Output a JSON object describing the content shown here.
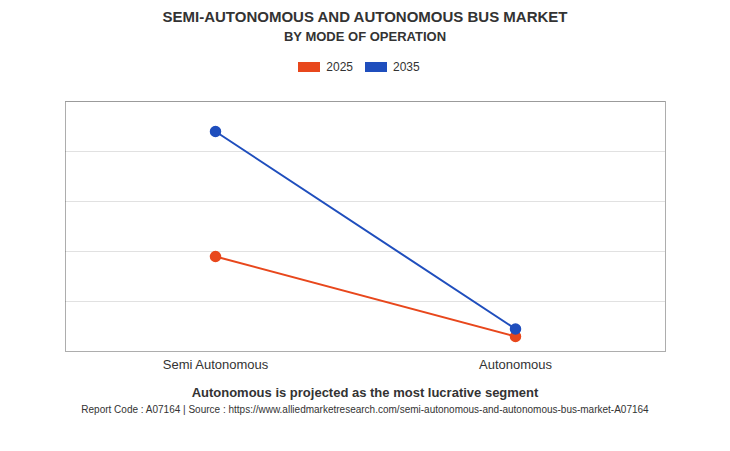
{
  "chart_data": {
    "type": "line",
    "title": "SEMI-AUTONOMOUS AND AUTONOMOUS BUS MARKET",
    "subtitle": "BY MODE OF OPERATION",
    "categories": [
      "Semi Autonomous",
      "Autonomous"
    ],
    "series": [
      {
        "name": "2025",
        "color": "#E8471C",
        "values": [
          0.38,
          0.06
        ]
      },
      {
        "name": "2035",
        "color": "#1F4EBD",
        "values": [
          0.88,
          0.09
        ]
      }
    ],
    "ylim": [
      0,
      1.0
    ],
    "yticks": [
      0.2,
      0.4,
      0.6,
      0.8,
      1.0
    ],
    "grid": true,
    "tick_labels": "x",
    "legend": "top",
    "marker": "circle",
    "annotations": [
      "Autonomous is projected as the most lucrative segment",
      "Report Code : A07164  |  Source : https://www.alliedmarketresearch.com/semi-autonomous-and-autonomous-bus-market-A07164"
    ]
  }
}
